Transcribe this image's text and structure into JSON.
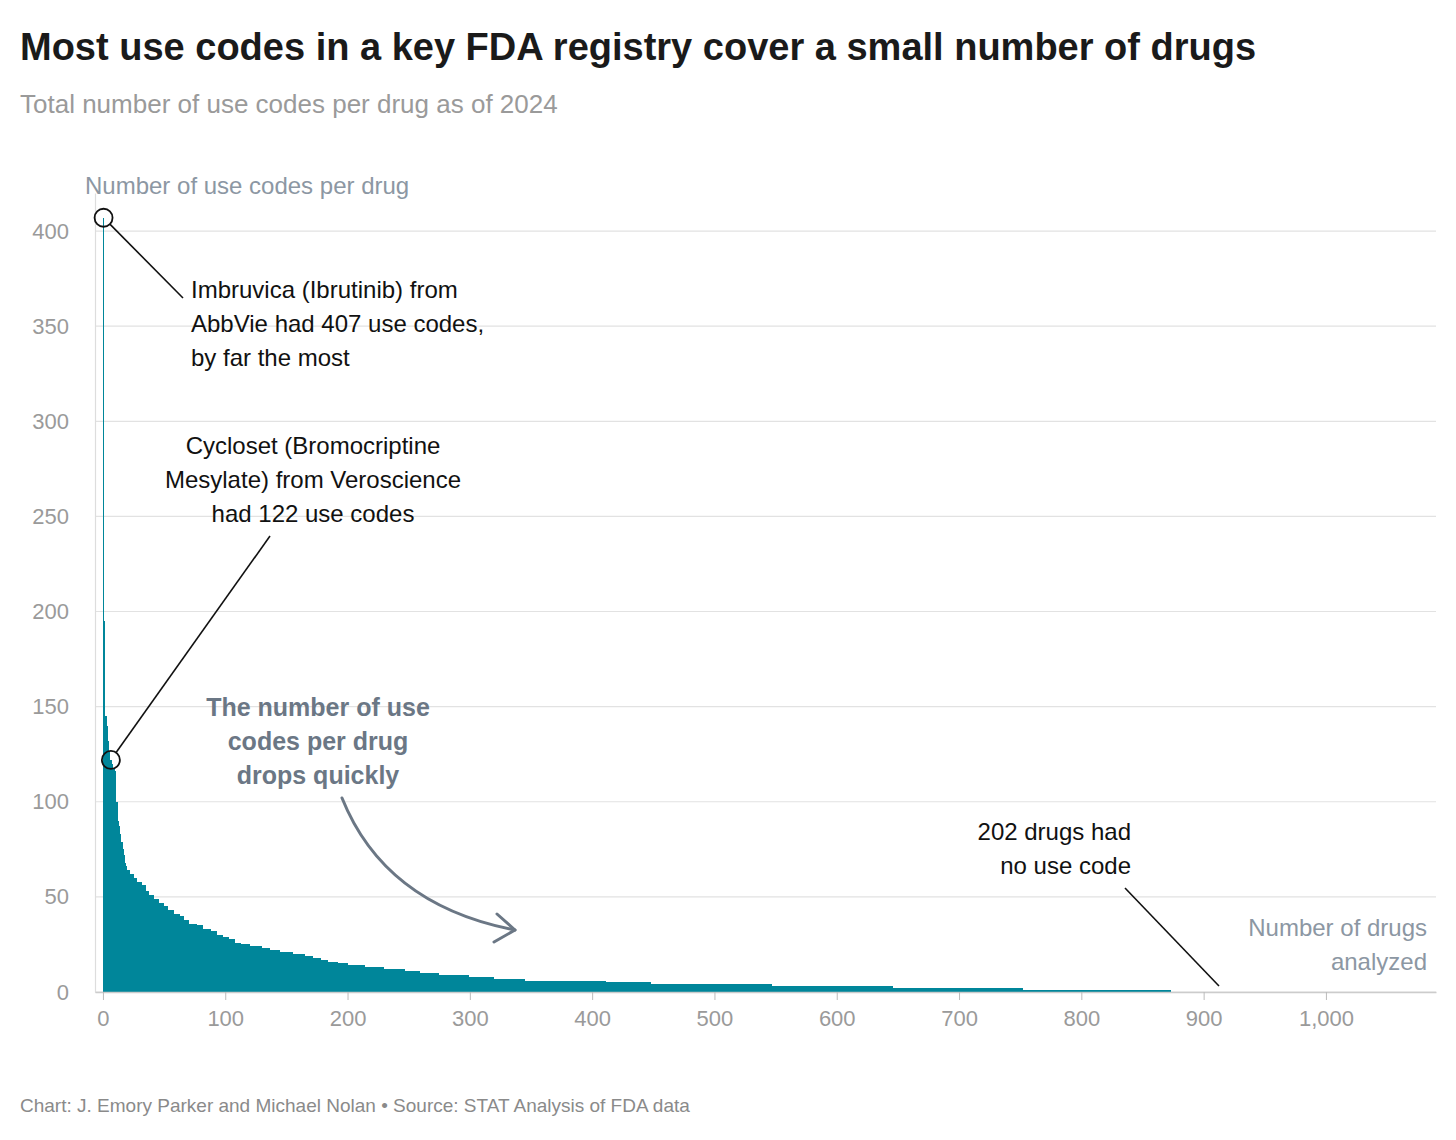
{
  "chart_data": {
    "type": "histogram",
    "title": "Most use codes in a key FDA registry cover a small number of drugs",
    "subtitle": "Total number of use codes per drug as of 2024",
    "y_label": "Number of use codes per drug",
    "x_label": [
      "Number of drugs",
      "analyzed"
    ],
    "source": "Chart: J. Emory Parker and Michael Nolan • Source: STAT Analysis of FDA data",
    "bins": [
      0,
      1,
      2,
      3,
      4,
      5,
      6,
      7,
      8,
      9,
      10,
      11,
      12,
      13,
      14,
      15,
      16,
      17,
      18,
      19,
      20,
      22,
      25,
      28,
      32,
      35,
      38,
      42,
      46,
      50,
      53,
      58,
      63,
      66,
      70,
      77,
      82,
      88,
      93,
      98,
      103,
      108,
      113,
      120,
      130,
      137,
      145,
      155,
      165,
      172,
      178,
      184,
      192,
      200,
      214,
      230,
      247,
      259,
      275,
      299,
      320,
      345,
      411,
      448,
      547,
      646,
      752,
      873,
      1075
    ],
    "values": [
      407,
      195,
      145,
      140,
      132,
      126,
      122,
      120,
      118,
      117,
      116,
      100,
      90,
      87,
      83,
      79,
      75,
      72,
      68,
      66,
      64,
      62,
      60,
      58,
      56,
      53,
      51,
      49,
      47,
      45,
      43,
      41,
      40,
      38,
      36,
      35,
      33,
      32,
      30,
      29,
      28,
      26,
      25,
      24,
      23,
      22,
      21,
      20,
      19,
      18,
      17,
      16,
      15,
      14,
      13,
      12,
      11,
      10,
      9,
      8,
      7,
      6,
      5,
      4,
      3,
      2,
      1,
      0
    ],
    "color": "#00869a",
    "xlim": [
      -6.5,
      1090
    ],
    "xticks": [
      0,
      100,
      200,
      300,
      400,
      500,
      600,
      700,
      800,
      900,
      {
        "value": 1000,
        "label": "1,000"
      }
    ],
    "ylim": [
      0,
      420
    ],
    "yticks": [
      0,
      50,
      100,
      150,
      200,
      250,
      300,
      350,
      400
    ],
    "grid": true,
    "annotations": [
      {
        "text": [
          "Imbruvica (Ibrutinib) from",
          "AbbVie had 407 use codes,",
          "by far the most"
        ],
        "x": 0.5,
        "y": 407
      },
      {
        "text": [
          "Cycloset (Bromocriptine",
          "Mesylate) from Veroscience",
          "had 122 use codes"
        ],
        "x": 6.5,
        "y": 122
      },
      {
        "text": [
          "The number of use",
          "codes per drug",
          "drops quickly"
        ]
      },
      {
        "text": [
          "202 drugs had",
          "no use code"
        ],
        "x": 915,
        "y": 0
      }
    ]
  }
}
